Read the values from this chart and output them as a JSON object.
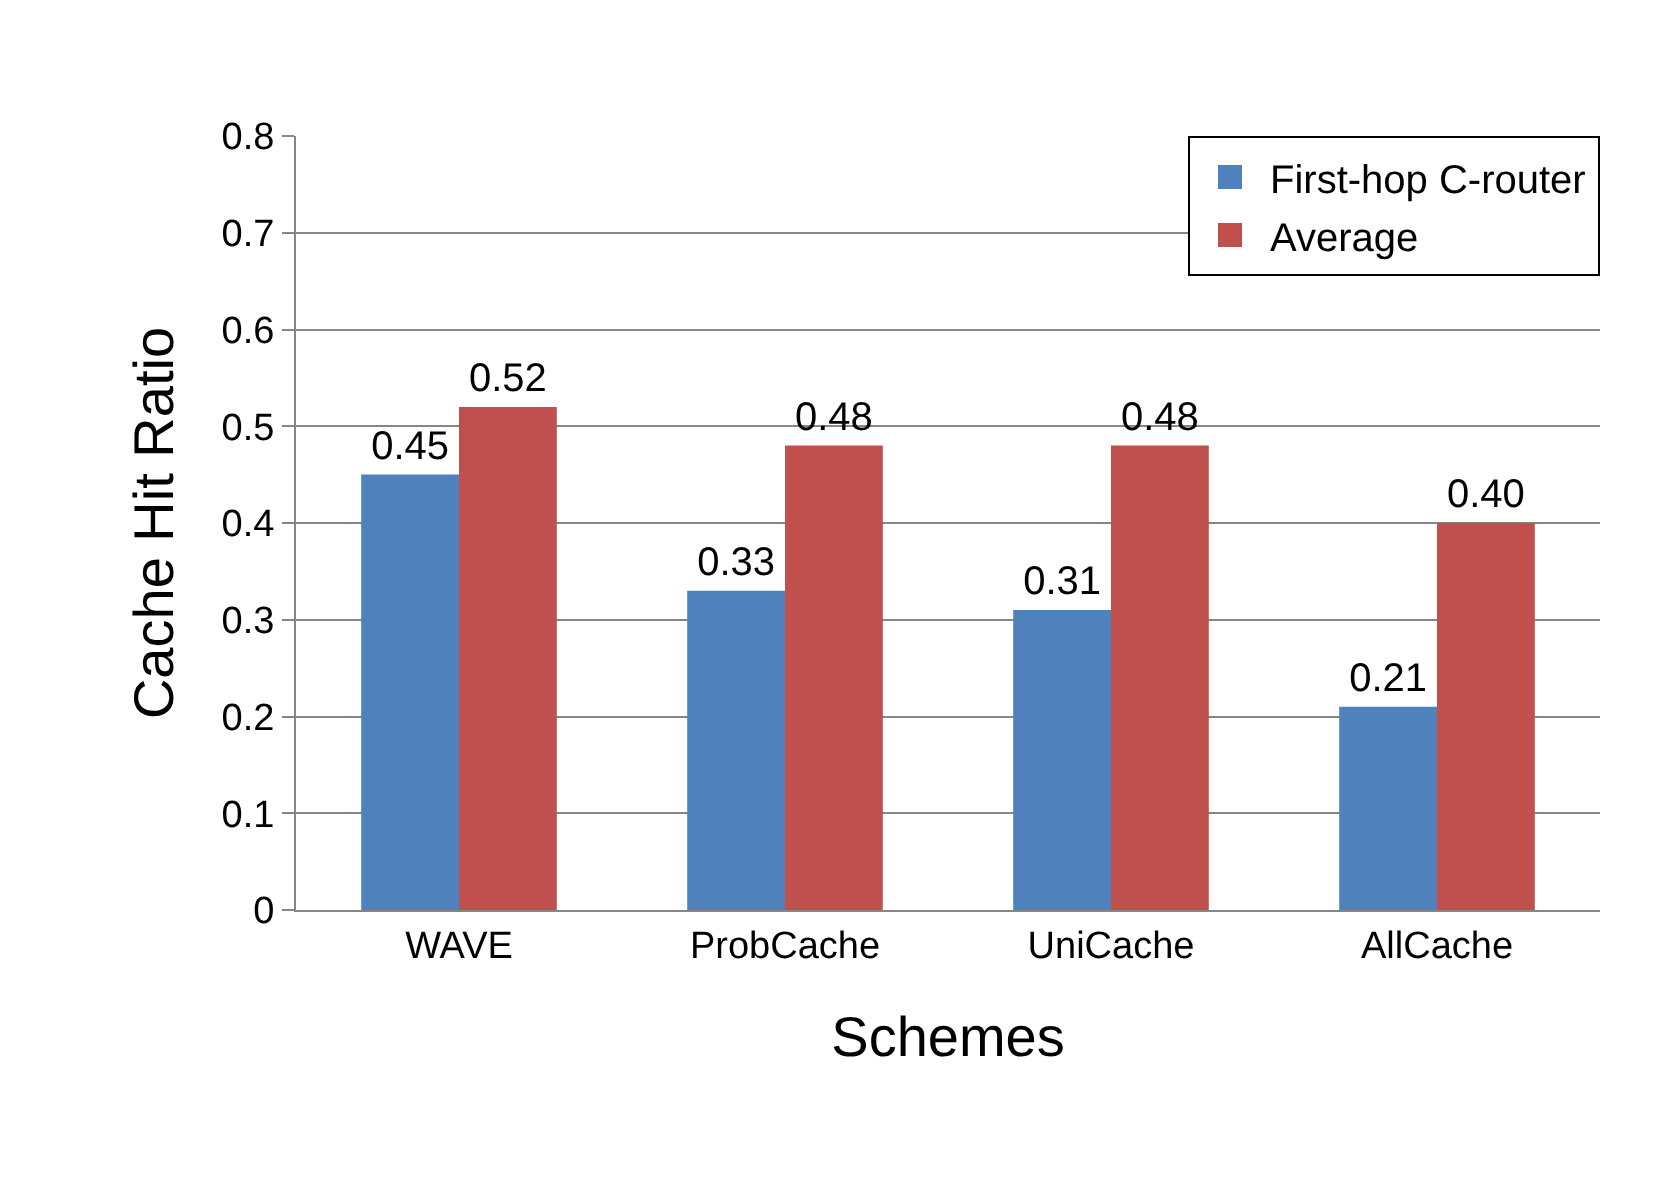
{
  "chart_data": {
    "type": "bar",
    "xlabel": "Schemes",
    "ylabel": "Cache Hit Ratio",
    "categories": [
      "WAVE",
      "ProbCache",
      "UniCache",
      "AllCache"
    ],
    "series": [
      {
        "name": "First-hop C-router",
        "color": "#4f81bd",
        "values": [
          0.45,
          0.33,
          0.31,
          0.21
        ],
        "value_labels": [
          "0.45",
          "0.33",
          "0.31",
          "0.21"
        ]
      },
      {
        "name": "Average",
        "color": "#c0504d",
        "values": [
          0.52,
          0.48,
          0.48,
          0.4
        ],
        "value_labels": [
          "0.52",
          "0.48",
          "0.48",
          "0.40"
        ]
      }
    ],
    "ylim": [
      0,
      0.8
    ],
    "yticks": [
      0,
      0.1,
      0.2,
      0.3,
      0.4,
      0.5,
      0.6,
      0.7,
      0.8
    ],
    "grid": "y",
    "legend": "top right"
  }
}
